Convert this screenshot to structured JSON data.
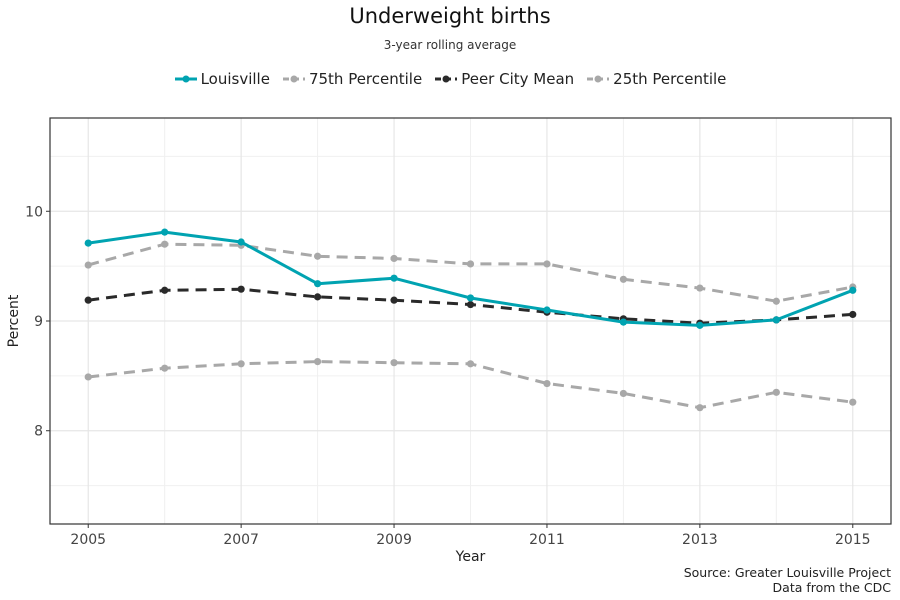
{
  "chart_data": {
    "type": "line",
    "title": "Underweight births",
    "subtitle": "3-year rolling average",
    "xlabel": "Year",
    "ylabel": "Percent",
    "xlim": [
      2004.5,
      2015.5
    ],
    "ylim": [
      7.15,
      10.85
    ],
    "x_ticks": [
      2005,
      2007,
      2009,
      2011,
      2013,
      2015
    ],
    "y_ticks": [
      8,
      9,
      10
    ],
    "grid": true,
    "legend_position": "top",
    "x": [
      2005,
      2006,
      2007,
      2008,
      2009,
      2010,
      2011,
      2012,
      2013,
      2014,
      2015
    ],
    "series": [
      {
        "name": "Louisville",
        "color": "#00a3b1",
        "dashed": false,
        "values": [
          9.71,
          9.81,
          9.72,
          9.34,
          9.39,
          9.21,
          9.1,
          8.99,
          8.96,
          9.01,
          9.28
        ]
      },
      {
        "name": "75th Percentile",
        "color": "#a8a8a8",
        "dashed": true,
        "values": [
          9.51,
          9.7,
          9.69,
          9.59,
          9.57,
          9.52,
          9.52,
          9.38,
          9.3,
          9.18,
          9.31
        ]
      },
      {
        "name": "Peer City Mean",
        "color": "#2a2a2a",
        "dashed": true,
        "values": [
          9.19,
          9.28,
          9.29,
          9.22,
          9.19,
          9.15,
          9.08,
          9.02,
          8.98,
          9.01,
          9.06
        ]
      },
      {
        "name": "25th Percentile",
        "color": "#a8a8a8",
        "dashed": true,
        "values": [
          8.49,
          8.57,
          8.61,
          8.63,
          8.62,
          8.61,
          8.43,
          8.34,
          8.21,
          8.35,
          8.26
        ]
      }
    ],
    "caption": [
      "Source: Greater Louisville Project",
      "Data from the CDC"
    ]
  }
}
